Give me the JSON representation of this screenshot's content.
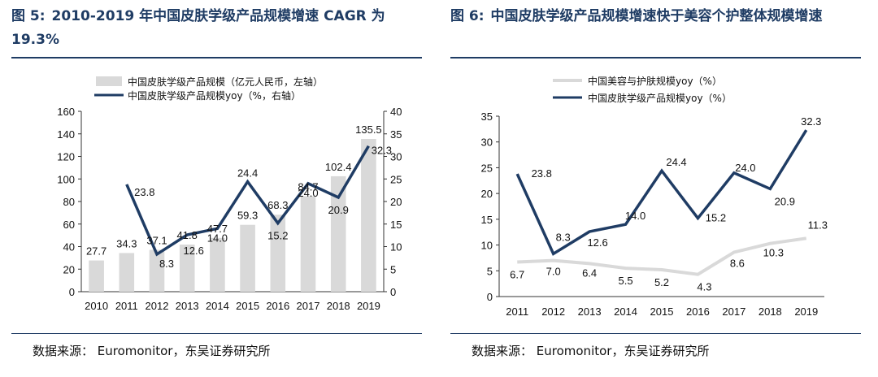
{
  "figures": [
    {
      "fig_label": "图 5:",
      "title": "2010-2019 年中国皮肤学级产品规模增速 CAGR 为 19.3%",
      "source": "数据来源： Euromonitor，东吴证券研究所"
    },
    {
      "fig_label": "图 6:",
      "title": "中国皮肤学级产品规模增速快于美容个护整体规模增速",
      "source": "数据来源： Euromonitor，东吴证券研究所"
    }
  ],
  "colors": {
    "bar": "#d9d9d9",
    "navy": "#1f3c64",
    "light": "#d9d9d9",
    "title": "#1f3c64"
  },
  "chart_data": [
    {
      "type": "bar+line",
      "categories": [
        "2010",
        "2011",
        "2012",
        "2013",
        "2014",
        "2015",
        "2016",
        "2017",
        "2018",
        "2019"
      ],
      "series": [
        {
          "name": "中国皮肤学级产品规模（亿元人民币，左轴）",
          "kind": "bar",
          "axis": "left",
          "values": [
            27.7,
            34.3,
            37.1,
            41.8,
            47.7,
            59.3,
            68.3,
            84.7,
            102.4,
            135.5
          ]
        },
        {
          "name": "中国皮肤学级产品规模yoy（%，右轴）",
          "kind": "line",
          "axis": "right",
          "values": [
            null,
            23.8,
            8.3,
            12.6,
            14.0,
            24.4,
            15.2,
            24.0,
            20.9,
            32.3
          ]
        }
      ],
      "y_left": {
        "min": 0,
        "max": 160,
        "ticks": [
          0,
          20,
          40,
          60,
          80,
          100,
          120,
          140,
          160
        ]
      },
      "y_right": {
        "min": 0,
        "max": 40,
        "ticks": [
          0,
          5,
          10,
          15,
          20,
          25,
          30,
          35,
          40
        ]
      },
      "legend_position": "top-center"
    },
    {
      "type": "line",
      "categories": [
        "2011",
        "2012",
        "2013",
        "2014",
        "2015",
        "2016",
        "2017",
        "2018",
        "2019"
      ],
      "series": [
        {
          "name": "中国美容与护肤规模yoy（%）",
          "style": "light",
          "values": [
            6.7,
            7.0,
            6.4,
            5.5,
            5.2,
            4.3,
            8.6,
            10.3,
            11.3
          ]
        },
        {
          "name": "中国皮肤学级产品规模yoy（%）",
          "style": "navy",
          "values": [
            23.8,
            8.3,
            12.6,
            14.0,
            24.4,
            15.2,
            24.0,
            20.9,
            32.3
          ]
        }
      ],
      "y": {
        "min": 0,
        "max": 35,
        "ticks": [
          0,
          5,
          10,
          15,
          20,
          25,
          30,
          35
        ]
      },
      "legend_position": "top-center"
    }
  ]
}
